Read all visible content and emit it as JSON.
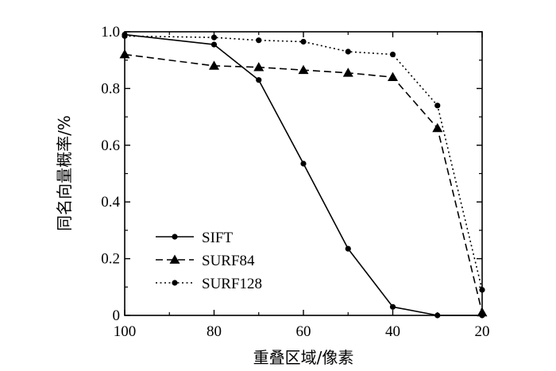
{
  "chart_data": {
    "type": "line",
    "xlabel": "重叠区域/像素",
    "ylabel": "同名向量概率/%",
    "xlim": [
      100,
      20
    ],
    "ylim": [
      0,
      1.0
    ],
    "x_ticks": [
      100,
      80,
      60,
      40,
      20
    ],
    "x_tick_labels": [
      "100",
      "80",
      "60",
      "40",
      "20"
    ],
    "y_ticks": [
      0,
      0.2,
      0.4,
      0.6,
      0.8,
      1.0
    ],
    "y_tick_labels": [
      "0",
      "0.2",
      "0.4",
      "0.6",
      "0.8",
      "1.0"
    ],
    "grid": false,
    "legend_position": "bottom-left",
    "series": [
      {
        "name": "SIFT",
        "line_style": "solid",
        "marker": "circle",
        "x": [
          100,
          80,
          70,
          60,
          50,
          40,
          30,
          20
        ],
        "y": [
          0.99,
          0.955,
          0.83,
          0.535,
          0.235,
          0.03,
          0.0,
          0.0
        ]
      },
      {
        "name": "SURF84",
        "line_style": "dashed",
        "marker": "triangle",
        "x": [
          100,
          80,
          70,
          60,
          50,
          40,
          30,
          20
        ],
        "y": [
          0.92,
          0.88,
          0.875,
          0.865,
          0.855,
          0.84,
          0.66,
          0.01
        ]
      },
      {
        "name": "SURF128",
        "line_style": "dotted",
        "marker": "circle",
        "x": [
          100,
          80,
          70,
          60,
          50,
          40,
          30,
          20
        ],
        "y": [
          0.985,
          0.98,
          0.97,
          0.965,
          0.93,
          0.92,
          0.74,
          0.09
        ]
      }
    ]
  }
}
